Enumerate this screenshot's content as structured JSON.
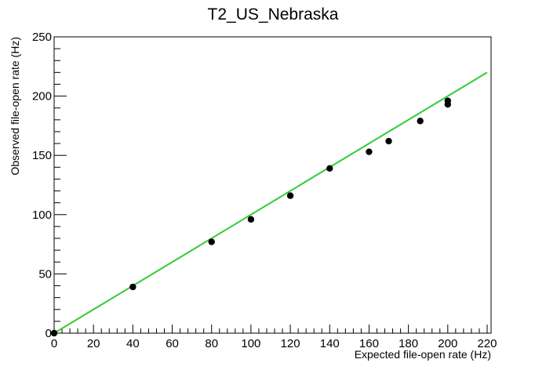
{
  "chart_data": {
    "type": "scatter",
    "title": "T2_US_Nebraska",
    "xlabel": "Expected file-open rate (Hz)",
    "ylabel": "Observed file-open rate (Hz)",
    "xlim": [
      0,
      222
    ],
    "ylim": [
      0,
      250
    ],
    "x_ticks": [
      0,
      20,
      40,
      60,
      80,
      100,
      120,
      140,
      160,
      180,
      200,
      220
    ],
    "y_ticks": [
      0,
      50,
      100,
      150,
      200,
      250
    ],
    "grid": false,
    "legend": "none",
    "series": [
      {
        "kind": "points",
        "color": "#000000",
        "points": [
          {
            "x": 0,
            "y": 0
          },
          {
            "x": 40,
            "y": 39
          },
          {
            "x": 80,
            "y": 77
          },
          {
            "x": 100,
            "y": 96
          },
          {
            "x": 120,
            "y": 116
          },
          {
            "x": 140,
            "y": 139
          },
          {
            "x": 160,
            "y": 153
          },
          {
            "x": 170,
            "y": 162
          },
          {
            "x": 186,
            "y": 179
          },
          {
            "x": 200,
            "y": 193
          },
          {
            "x": 200,
            "y": 196
          }
        ]
      },
      {
        "kind": "line",
        "color": "#33cc33",
        "points": [
          {
            "x": 0,
            "y": 0
          },
          {
            "x": 220,
            "y": 220
          }
        ]
      }
    ]
  }
}
